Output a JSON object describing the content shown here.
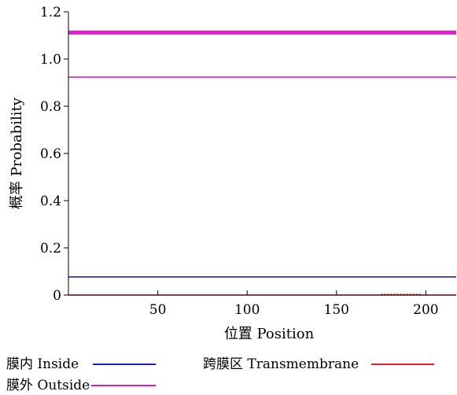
{
  "chart_data": {
    "type": "line",
    "xlabel": "位置 Position",
    "ylabel": "概率 Probability",
    "xlim": [
      0,
      217
    ],
    "ylim": [
      0,
      1.2
    ],
    "xticks": [
      50,
      100,
      150,
      200
    ],
    "yticks": [
      0,
      0.2,
      0.4,
      0.6,
      0.8,
      1.0,
      1.2
    ],
    "ytick_labels": [
      "0",
      "0.2",
      "0.4",
      "0.6",
      "0.8",
      "1.0",
      "1.2"
    ],
    "grid": false,
    "legend_position": "bottom",
    "series": [
      {
        "name": "膜内 Inside",
        "color": "#1f1fd0",
        "x": [
          0,
          217
        ],
        "y": [
          0.077,
          0.077
        ]
      },
      {
        "name": "跨膜区 Transmembrane",
        "color": "#e8202a",
        "x": [
          0,
          217
        ],
        "y": [
          0,
          0
        ]
      },
      {
        "name": "膜外 Outside",
        "color": "#e020d0",
        "x": [
          0,
          217
        ],
        "y": [
          0.923,
          0.923
        ]
      }
    ],
    "annotations": [
      {
        "kind": "bold-line",
        "color": "#e020d0",
        "x": [
          0,
          217
        ],
        "y": 1.112
      },
      {
        "kind": "dotted-segment",
        "color": "#e8202a",
        "x": [
          175,
          197
        ],
        "y": 0
      }
    ]
  }
}
